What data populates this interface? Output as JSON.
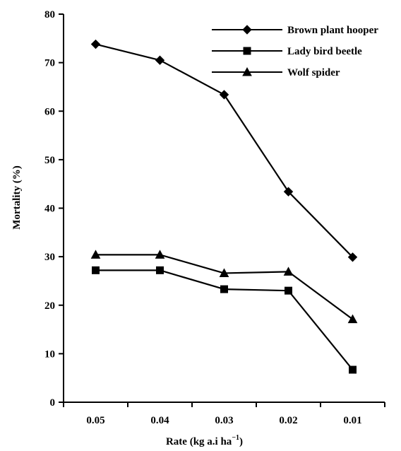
{
  "chart_data": {
    "type": "line",
    "title": "",
    "xlabel": "Rate (kg a.i ha",
    "xlabel_superscript": "−1",
    "xlabel_suffix": ")",
    "ylabel": "Mortality (%)",
    "categories": [
      "0.05",
      "0.04",
      "0.03",
      "0.02",
      "0.01"
    ],
    "ylim": [
      0,
      80
    ],
    "yticks": [
      0,
      10,
      20,
      30,
      40,
      50,
      60,
      70,
      80
    ],
    "grid": false,
    "legend_position": "top-right",
    "series": [
      {
        "name": "Brown plant hooper",
        "marker": "diamond",
        "values": [
          73.8,
          70.5,
          63.4,
          43.4,
          29.9
        ]
      },
      {
        "name": "Lady bird beetle",
        "marker": "square",
        "values": [
          27.2,
          27.2,
          23.3,
          23.0,
          6.7
        ]
      },
      {
        "name": "Wolf spider",
        "marker": "triangle",
        "values": [
          30.4,
          30.4,
          26.6,
          26.9,
          17.1
        ]
      }
    ]
  }
}
